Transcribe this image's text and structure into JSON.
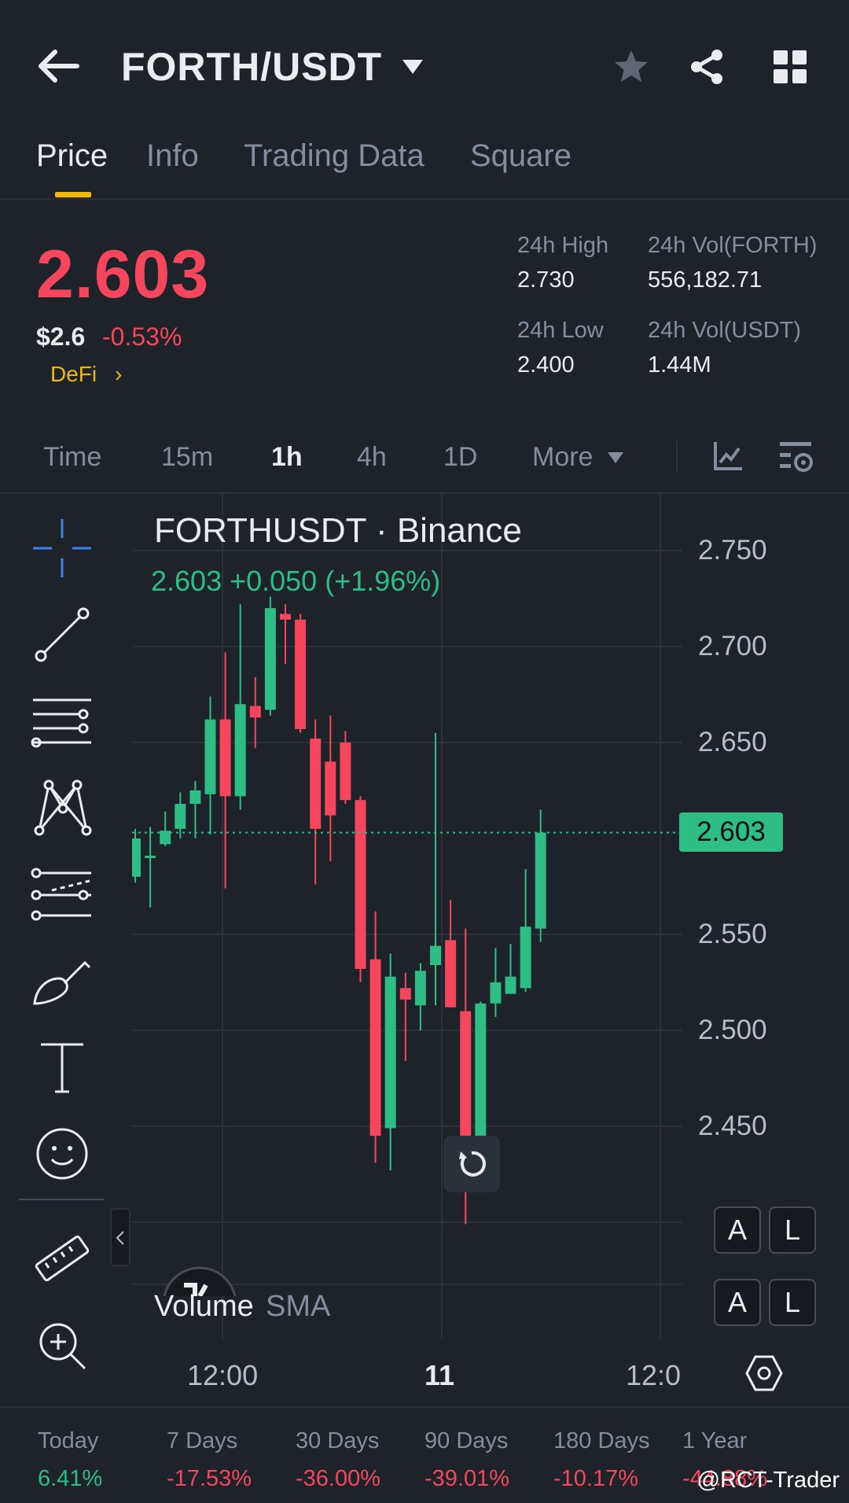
{
  "header": {
    "pair": "FORTH/USDT",
    "back_icon": "arrow-left-icon",
    "favorite_icon": "star-icon",
    "share_icon": "share-icon",
    "grid_icon": "grid-icon"
  },
  "tabs": [
    "Price",
    "Info",
    "Trading Data",
    "Square"
  ],
  "active_tab": "Price",
  "price": {
    "last": "2.603",
    "usd": "$2.6",
    "change": "-0.53%",
    "sector": "DeFi",
    "sector_arrow": "›"
  },
  "stats": {
    "high_label": "24h High",
    "high_value": "2.730",
    "low_label": "24h Low",
    "low_value": "2.400",
    "vol_base_label": "24h Vol(FORTH)",
    "vol_base_value": "556,182.71",
    "vol_quote_label": "24h Vol(USDT)",
    "vol_quote_value": "1.44M"
  },
  "intervals": [
    "Time",
    "15m",
    "1h",
    "4h",
    "1D",
    "More"
  ],
  "active_interval": "1h",
  "chart": {
    "title": "FORTHUSDT · Binance",
    "subtitle": "2.603  +0.050 (+1.96%)",
    "current_price_tag": "2.603",
    "y_ticks": [
      "2.750",
      "2.700",
      "2.650",
      "2.600",
      "2.550",
      "2.500",
      "2.450"
    ],
    "x_ticks": [
      "12:00",
      "11",
      "12:0"
    ],
    "volume_label": "Volume",
    "volume_sma": "SMA",
    "scale_buttons": [
      [
        "A",
        "L"
      ],
      [
        "A",
        "L"
      ]
    ]
  },
  "chart_data": {
    "type": "candlestick",
    "ylim": [
      2.4,
      2.78
    ],
    "current": 2.603,
    "up_color": "#2ebd85",
    "down_color": "#f6465d",
    "candles": [
      {
        "o": 2.58,
        "h": 2.605,
        "l": 2.577,
        "c": 2.6
      },
      {
        "o": 2.59,
        "h": 2.606,
        "l": 2.564,
        "c": 2.591
      },
      {
        "o": 2.597,
        "h": 2.614,
        "l": 2.596,
        "c": 2.604
      },
      {
        "o": 2.605,
        "h": 2.624,
        "l": 2.6,
        "c": 2.618
      },
      {
        "o": 2.618,
        "h": 2.63,
        "l": 2.6,
        "c": 2.625
      },
      {
        "o": 2.623,
        "h": 2.674,
        "l": 2.602,
        "c": 2.662
      },
      {
        "o": 2.662,
        "h": 2.697,
        "l": 2.574,
        "c": 2.622
      },
      {
        "o": 2.622,
        "h": 2.722,
        "l": 2.615,
        "c": 2.67
      },
      {
        "o": 2.669,
        "h": 2.684,
        "l": 2.647,
        "c": 2.663
      },
      {
        "o": 2.667,
        "h": 2.726,
        "l": 2.664,
        "c": 2.72
      },
      {
        "o": 2.717,
        "h": 2.722,
        "l": 2.691,
        "c": 2.714
      },
      {
        "o": 2.714,
        "h": 2.717,
        "l": 2.655,
        "c": 2.657
      },
      {
        "o": 2.652,
        "h": 2.662,
        "l": 2.576,
        "c": 2.605
      },
      {
        "o": 2.64,
        "h": 2.664,
        "l": 2.588,
        "c": 2.612
      },
      {
        "o": 2.65,
        "h": 2.656,
        "l": 2.618,
        "c": 2.62
      },
      {
        "o": 2.62,
        "h": 2.622,
        "l": 2.525,
        "c": 2.532
      },
      {
        "o": 2.537,
        "h": 2.562,
        "l": 2.431,
        "c": 2.445
      },
      {
        "o": 2.449,
        "h": 2.54,
        "l": 2.427,
        "c": 2.528
      },
      {
        "o": 2.522,
        "h": 2.53,
        "l": 2.484,
        "c": 2.516
      },
      {
        "o": 2.513,
        "h": 2.535,
        "l": 2.5,
        "c": 2.531
      },
      {
        "o": 2.534,
        "h": 2.655,
        "l": 2.513,
        "c": 2.544
      },
      {
        "o": 2.547,
        "h": 2.568,
        "l": 2.512,
        "c": 2.512
      },
      {
        "o": 2.51,
        "h": 2.553,
        "l": 2.399,
        "c": 2.425
      },
      {
        "o": 2.425,
        "h": 2.515,
        "l": 2.416,
        "c": 2.514
      },
      {
        "o": 2.514,
        "h": 2.543,
        "l": 2.507,
        "c": 2.525
      },
      {
        "o": 2.519,
        "h": 2.545,
        "l": 2.519,
        "c": 2.528
      },
      {
        "o": 2.522,
        "h": 2.584,
        "l": 2.52,
        "c": 2.554
      },
      {
        "o": 2.553,
        "h": 2.615,
        "l": 2.546,
        "c": 2.603
      }
    ]
  },
  "performance": [
    {
      "label": "Today",
      "value": "6.41%",
      "color": "#2ebd85"
    },
    {
      "label": "7 Days",
      "value": "-17.53%",
      "color": "#f6465d"
    },
    {
      "label": "30 Days",
      "value": "-36.00%",
      "color": "#f6465d"
    },
    {
      "label": "90 Days",
      "value": "-39.01%",
      "color": "#f6465d"
    },
    {
      "label": "180 Days",
      "value": "-10.17%",
      "color": "#f6465d"
    },
    {
      "label": "1 Year",
      "value": "-44.88%",
      "color": "#f6465d"
    }
  ],
  "watermark": "@RCT-Trader"
}
